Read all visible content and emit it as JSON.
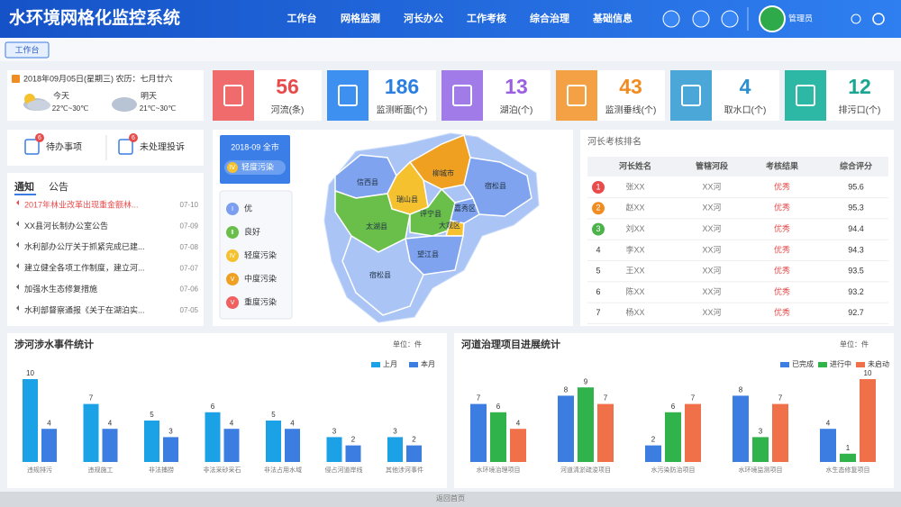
{
  "header": {
    "title": "水环境网格化监控系统",
    "nav": [
      "工作台",
      "网格监测",
      "河长办公",
      "工作考核",
      "综合治理",
      "基础信息"
    ],
    "user": "管理员"
  },
  "tabs": [
    "工作台"
  ],
  "date_card": {
    "date": "2018年09月05日(星期三) 农历：七月廿六",
    "weather": [
      {
        "day": "今天",
        "temp": "22℃~30℃"
      },
      {
        "day": "明天",
        "temp": "21℃~30℃"
      }
    ]
  },
  "stats": [
    {
      "value": 56,
      "label": "河流(条)",
      "color": "#e84b4b"
    },
    {
      "value": 186,
      "label": "监测断面(个)",
      "color": "#2b7fe0"
    },
    {
      "value": 13,
      "label": "湖泊(个)",
      "color": "#9a60e0"
    },
    {
      "value": 43,
      "label": "监测垂线(个)",
      "color": "#f08c22"
    },
    {
      "value": 4,
      "label": "取水口(个)",
      "color": "#2b8fd0"
    },
    {
      "value": 12,
      "label": "排污口(个)",
      "color": "#1aa690"
    }
  ],
  "todo": [
    {
      "label": "待办事项",
      "badge": 6
    },
    {
      "label": "未处理投诉",
      "badge": 6
    }
  ],
  "notices": {
    "tabs": [
      "通知",
      "公告"
    ],
    "items": [
      {
        "text": "2017年林业改革出现重金额林...",
        "date": "07-10"
      },
      {
        "text": "XX县河长制办公室公告",
        "date": "07-09"
      },
      {
        "text": "水利部办公厅关于抓紧完成已建...",
        "date": "07-08"
      },
      {
        "text": "建立健全各项工作制度，建立河...",
        "date": "07-07"
      },
      {
        "text": "加强水生态修复措施",
        "date": "07-06"
      },
      {
        "text": "水利部督察通报《关于在湖泊实...",
        "date": "07-05"
      }
    ]
  },
  "map": {
    "period": "2018-09 全市",
    "status_badge": "Ⅳ",
    "status": "轻度污染",
    "legend": [
      {
        "badge": "Ⅰ",
        "label": "优"
      },
      {
        "badge": "Ⅱ",
        "label": "良好"
      },
      {
        "badge": "Ⅳ",
        "label": "轻度污染"
      },
      {
        "badge": "Ⅴ",
        "label": "中度污染"
      },
      {
        "badge": "Ⅴ",
        "label": "重度污染"
      }
    ],
    "regions": [
      "信西县",
      "柳城市",
      "瑞山县",
      "太湖县",
      "评宁县",
      "嘉秀区",
      "大观区",
      "宿松县",
      "望江县",
      "宿松县"
    ]
  },
  "ranking": {
    "title": "河长考核排名",
    "columns": [
      "河长姓名",
      "管辖河段",
      "考核结果",
      "综合评分"
    ],
    "rows": [
      [
        "1",
        "张XX",
        "XX河",
        "优秀",
        95.6
      ],
      [
        "2",
        "赵XX",
        "XX河",
        "优秀",
        95.3
      ],
      [
        "3",
        "刘XX",
        "XX河",
        "优秀",
        94.4
      ],
      [
        "4",
        "李XX",
        "XX河",
        "优秀",
        94.3
      ],
      [
        "5",
        "王XX",
        "XX河",
        "优秀",
        93.5
      ],
      [
        "6",
        "陈XX",
        "XX河",
        "优秀",
        93.2
      ],
      [
        "7",
        "杨XX",
        "XX河",
        "优秀",
        92.7
      ]
    ]
  },
  "chart_data": [
    {
      "type": "bar",
      "title": "涉河涉水事件统计",
      "unit": "单位：件",
      "categories": [
        "违规排污",
        "违规施工",
        "非法捕捞",
        "非法采砂采石",
        "非法占用水域",
        "侵占河道岸线",
        "其他涉河事件"
      ],
      "series": [
        {
          "name": "上月",
          "color": "#1ba1e6",
          "values": [
            10,
            7,
            5,
            6,
            5,
            3,
            3
          ]
        },
        {
          "name": "本月",
          "color": "#3b7de0",
          "values": [
            4,
            4,
            3,
            4,
            4,
            2,
            2
          ]
        }
      ]
    },
    {
      "type": "bar",
      "title": "河道治理项目进展统计",
      "unit": "单位：件",
      "categories": [
        "水环境治理项目",
        "河道清淤疏浚项目",
        "水污染防治项目",
        "水环境监测项目",
        "水生态修复项目"
      ],
      "series": [
        {
          "name": "已完成",
          "color": "#3b7de0",
          "values": [
            7,
            8,
            2,
            8,
            4
          ]
        },
        {
          "name": "进行中",
          "color": "#2fb34a",
          "values": [
            6,
            9,
            6,
            3,
            1
          ]
        },
        {
          "name": "未启动",
          "color": "#f0704a",
          "values": [
            4,
            7,
            7,
            7,
            10
          ]
        }
      ]
    }
  ],
  "footer": "返回首页"
}
